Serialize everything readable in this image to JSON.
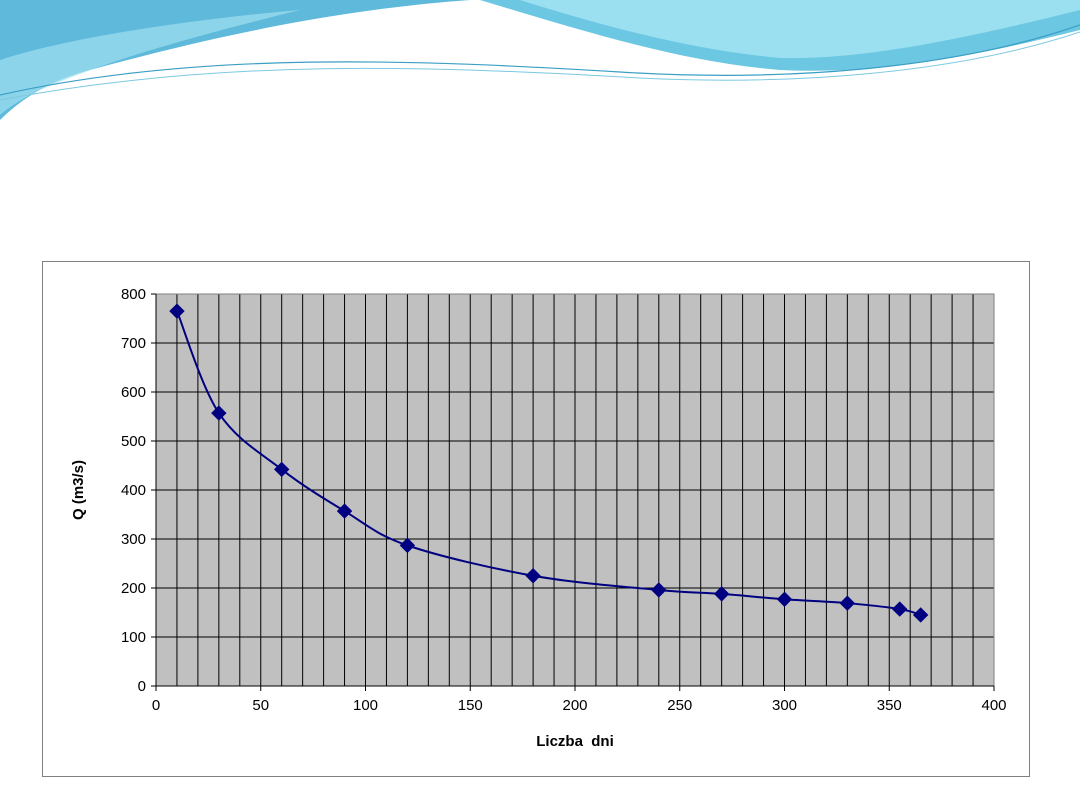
{
  "theme": {
    "plot_background": "#c0c0c0",
    "series_color": "#000080",
    "grid_color": "#000000",
    "wave_dark": "#3aa9d6",
    "wave_light": "#8fd8ec"
  },
  "chart_data": {
    "type": "line",
    "title": "",
    "xlabel": "Liczba  dni",
    "ylabel": "Q (m3/s)",
    "xlim": [
      0,
      400
    ],
    "ylim": [
      0,
      800
    ],
    "x_ticks": [
      0,
      50,
      100,
      150,
      200,
      250,
      300,
      350,
      400
    ],
    "y_ticks": [
      0,
      100,
      200,
      300,
      400,
      500,
      600,
      700,
      800
    ],
    "x_gridline_step": 10,
    "y_gridline_step": 100,
    "grid": true,
    "legend": "none",
    "marker": "diamond",
    "smoothed": true,
    "series": [
      {
        "x": [
          10,
          30,
          60,
          90,
          120,
          180,
          240,
          270,
          300,
          330,
          355,
          365
        ],
        "y": [
          765,
          557,
          442,
          357,
          287,
          225,
          196,
          188,
          177,
          169,
          157,
          145
        ]
      }
    ]
  }
}
